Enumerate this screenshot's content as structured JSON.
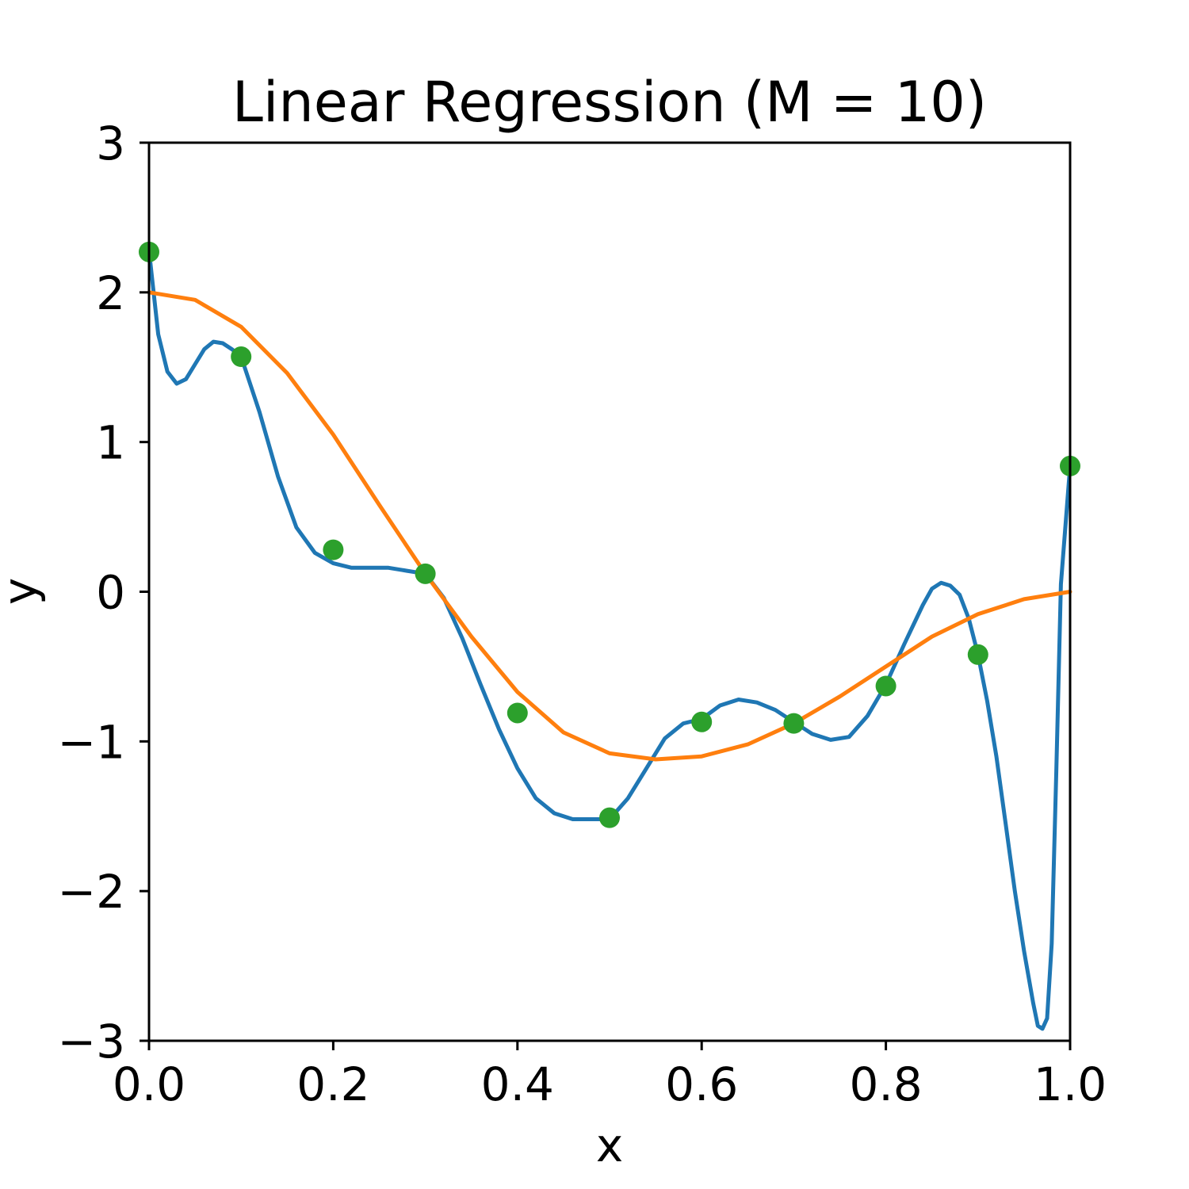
{
  "chart_data": {
    "type": "line",
    "title": "Linear Regression (M = 10)",
    "xlabel": "x",
    "ylabel": "y",
    "xlim": [
      0.0,
      1.0
    ],
    "ylim": [
      -3,
      3
    ],
    "xticks": [
      "0.0",
      "0.2",
      "0.4",
      "0.6",
      "0.8",
      "1.0"
    ],
    "yticks": [
      "3",
      "2",
      "1",
      "0",
      "−1",
      "−2",
      "−3"
    ],
    "grid": false,
    "legend": "none",
    "series": [
      {
        "kind": "line",
        "color": "#1f77b4",
        "x": [
          0.0,
          0.01,
          0.02,
          0.03,
          0.04,
          0.05,
          0.06,
          0.07,
          0.08,
          0.09,
          0.1,
          0.12,
          0.14,
          0.16,
          0.18,
          0.2,
          0.22,
          0.24,
          0.26,
          0.28,
          0.3,
          0.32,
          0.34,
          0.36,
          0.38,
          0.4,
          0.42,
          0.44,
          0.46,
          0.48,
          0.5,
          0.52,
          0.54,
          0.56,
          0.58,
          0.6,
          0.62,
          0.64,
          0.66,
          0.68,
          0.7,
          0.72,
          0.74,
          0.76,
          0.78,
          0.8,
          0.82,
          0.84,
          0.85,
          0.86,
          0.87,
          0.88,
          0.89,
          0.9,
          0.91,
          0.92,
          0.93,
          0.94,
          0.95,
          0.96,
          0.965,
          0.97,
          0.975,
          0.98,
          0.985,
          0.99,
          1.0
        ],
        "y": [
          2.28,
          1.72,
          1.47,
          1.39,
          1.42,
          1.52,
          1.62,
          1.67,
          1.66,
          1.62,
          1.57,
          1.2,
          0.77,
          0.43,
          0.26,
          0.19,
          0.16,
          0.16,
          0.16,
          0.14,
          0.12,
          -0.04,
          -0.31,
          -0.62,
          -0.92,
          -1.18,
          -1.38,
          -1.48,
          -1.52,
          -1.52,
          -1.52,
          -1.38,
          -1.18,
          -0.98,
          -0.88,
          -0.85,
          -0.76,
          -0.72,
          -0.74,
          -0.79,
          -0.87,
          -0.95,
          -0.99,
          -0.97,
          -0.83,
          -0.62,
          -0.35,
          -0.09,
          0.02,
          0.06,
          0.04,
          -0.02,
          -0.18,
          -0.42,
          -0.73,
          -1.1,
          -1.55,
          -2.0,
          -2.4,
          -2.75,
          -2.9,
          -2.92,
          -2.85,
          -2.35,
          -1.2,
          0.05,
          0.84
        ]
      },
      {
        "kind": "line",
        "color": "#ff7f0e",
        "x": [
          0.0,
          0.05,
          0.1,
          0.15,
          0.2,
          0.25,
          0.3,
          0.35,
          0.4,
          0.45,
          0.5,
          0.55,
          0.6,
          0.65,
          0.7,
          0.75,
          0.8,
          0.85,
          0.9,
          0.95,
          1.0
        ],
        "y": [
          2.0,
          1.95,
          1.77,
          1.46,
          1.05,
          0.58,
          0.12,
          -0.3,
          -0.67,
          -0.94,
          -1.08,
          -1.12,
          -1.1,
          -1.02,
          -0.88,
          -0.7,
          -0.5,
          -0.3,
          -0.15,
          -0.05,
          0.0
        ]
      },
      {
        "kind": "scatter",
        "color": "#2ca02c",
        "x": [
          0.0,
          0.1,
          0.2,
          0.3,
          0.4,
          0.5,
          0.6,
          0.7,
          0.8,
          0.9,
          1.0
        ],
        "y": [
          2.27,
          1.57,
          0.28,
          0.12,
          -0.81,
          -1.51,
          -0.87,
          -0.88,
          -0.63,
          -0.42,
          0.84
        ]
      }
    ]
  }
}
